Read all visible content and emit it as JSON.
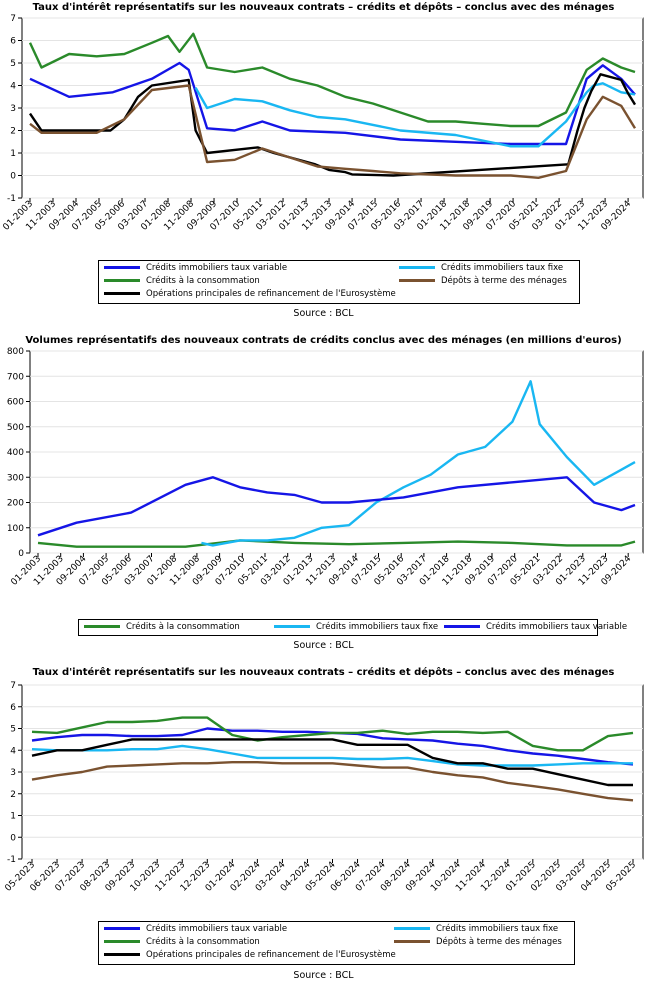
{
  "charts": [
    {
      "title": "Taux d'intérêt représentatifs sur les nouveaux contrats – crédits et dépôts – conclus avec des ménages",
      "source": "Source : BCL"
    },
    {
      "title": "Volumes représentatifs des nouveaux contrats de crédits conclus avec des ménages (en millions d'euros)",
      "source": "Source : BCL"
    },
    {
      "title": "Taux d'intérêt représentatifs sur les nouveaux contrats – crédits et dépôts – conclus avec des ménages",
      "source": "Source : BCL"
    }
  ],
  "chart_data": [
    {
      "type": "line",
      "title": "Taux d'intérêt représentatifs sur les nouveaux contrats – crédits et dépôts – conclus avec des ménages",
      "x_start": "01-2003",
      "x_end": "12-2024",
      "x_ticks": [
        "01-2003",
        "11-2003",
        "09-2004",
        "07-2005",
        "05-2006",
        "03-2007",
        "01-2008",
        "11-2008",
        "09-2009",
        "07-2010",
        "05-2011",
        "03-2012",
        "01-2013",
        "11-2013",
        "09-2014",
        "07-2015",
        "05-2016",
        "03-2017",
        "01-2018",
        "11-2018",
        "09-2019",
        "07-2020",
        "05-2021",
        "03-2022",
        "01-2023",
        "11-2023",
        "09-2024"
      ],
      "ylim": [
        -1,
        7
      ],
      "y_ticks": [
        -1,
        0,
        1,
        2,
        3,
        4,
        5,
        6,
        7
      ],
      "grid": true,
      "legend_position": "bottom",
      "series": [
        {
          "name": "Crédits immobiliers taux variable",
          "color": "#1515E6",
          "x": [
            "01-2003",
            "06-2004",
            "01-2006",
            "06-2007",
            "06-2008",
            "10-2008",
            "06-2009",
            "06-2010",
            "06-2011",
            "06-2012",
            "06-2014",
            "06-2016",
            "06-2018",
            "06-2020",
            "06-2022",
            "03-2023",
            "10-2023",
            "06-2024",
            "12-2024"
          ],
          "values": [
            4.3,
            3.5,
            3.7,
            4.3,
            5.0,
            4.7,
            2.1,
            2.0,
            2.4,
            2.0,
            1.9,
            1.6,
            1.5,
            1.4,
            1.4,
            4.3,
            4.9,
            4.3,
            3.6
          ]
        },
        {
          "name": "Crédits immobiliers taux fixe",
          "color": "#19B7F2",
          "x": [
            "01-2009",
            "06-2009",
            "06-2010",
            "06-2011",
            "06-2012",
            "06-2013",
            "06-2014",
            "06-2016",
            "06-2018",
            "06-2020",
            "06-2021",
            "06-2022",
            "03-2023",
            "06-2023",
            "10-2023",
            "06-2024",
            "12-2024"
          ],
          "values": [
            3.9,
            3.0,
            3.4,
            3.3,
            2.9,
            2.6,
            2.5,
            2.0,
            1.8,
            1.3,
            1.3,
            2.4,
            3.7,
            4.0,
            4.1,
            3.7,
            3.6
          ]
        },
        {
          "name": "Crédits à la consommation",
          "color": "#2A8A2A",
          "x": [
            "01-2003",
            "06-2003",
            "06-2004",
            "06-2005",
            "06-2006",
            "06-2007",
            "01-2008",
            "06-2008",
            "12-2008",
            "06-2009",
            "06-2010",
            "06-2011",
            "06-2012",
            "06-2013",
            "06-2014",
            "06-2015",
            "06-2016",
            "06-2017",
            "06-2018",
            "06-2019",
            "06-2020",
            "06-2021",
            "06-2022",
            "03-2023",
            "10-2023",
            "06-2024",
            "12-2024"
          ],
          "values": [
            5.9,
            4.8,
            5.4,
            5.3,
            5.4,
            5.9,
            6.2,
            5.5,
            6.3,
            4.8,
            4.6,
            4.8,
            4.3,
            4.0,
            3.5,
            3.2,
            2.8,
            2.4,
            2.4,
            2.3,
            2.2,
            2.2,
            2.8,
            4.7,
            5.2,
            4.8,
            4.6
          ]
        },
        {
          "name": "Opérations principales de refinancement de l'Eurosystème",
          "color": "#000000",
          "x": [
            "01-2003",
            "06-2003",
            "12-2005",
            "06-2006",
            "12-2006",
            "06-2007",
            "10-2008",
            "01-2009",
            "06-2009",
            "04-2011",
            "11-2011",
            "05-2013",
            "11-2013",
            "06-2014",
            "09-2014",
            "03-2016",
            "07-2022",
            "09-2022",
            "11-2022",
            "02-2023",
            "05-2023",
            "09-2023",
            "06-2024",
            "09-2024",
            "12-2024"
          ],
          "values": [
            2.75,
            2.0,
            2.0,
            2.5,
            3.5,
            4.0,
            4.25,
            2.0,
            1.0,
            1.25,
            1.0,
            0.5,
            0.25,
            0.15,
            0.05,
            0.0,
            0.5,
            1.25,
            2.0,
            3.0,
            3.75,
            4.5,
            4.25,
            3.65,
            3.15
          ]
        },
        {
          "name": "Dépôts à terme des ménages",
          "color": "#7A5230",
          "x": [
            "01-2003",
            "06-2003",
            "06-2005",
            "06-2006",
            "06-2007",
            "10-2008",
            "06-2009",
            "06-2010",
            "06-2011",
            "06-2012",
            "06-2013",
            "06-2014",
            "06-2015",
            "06-2016",
            "06-2018",
            "06-2020",
            "06-2021",
            "06-2022",
            "03-2023",
            "10-2023",
            "06-2024",
            "12-2024"
          ],
          "values": [
            2.3,
            1.9,
            1.9,
            2.5,
            3.8,
            4.0,
            0.6,
            0.7,
            1.2,
            0.8,
            0.4,
            0.3,
            0.2,
            0.1,
            0.0,
            0.0,
            -0.1,
            0.2,
            2.5,
            3.5,
            3.1,
            2.1
          ]
        }
      ]
    },
    {
      "type": "line",
      "title": "Volumes représentatifs des nouveaux contrats de crédits conclus avec des ménages (en millions d'euros)",
      "x_start": "01-2003",
      "x_end": "12-2024",
      "x_ticks": [
        "01-2003",
        "11-2003",
        "09-2004",
        "07-2005",
        "05-2006",
        "03-2007",
        "01-2008",
        "11-2008",
        "09-2009",
        "07-2010",
        "05-2011",
        "03-2012",
        "01-2013",
        "11-2013",
        "09-2014",
        "07-2015",
        "05-2016",
        "03-2017",
        "01-2018",
        "11-2018",
        "09-2019",
        "07-2020",
        "05-2021",
        "03-2022",
        "01-2023",
        "11-2023",
        "09-2024"
      ],
      "ylim": [
        0,
        800
      ],
      "y_ticks": [
        0,
        100,
        200,
        300,
        400,
        500,
        600,
        700,
        800
      ],
      "grid": true,
      "legend_position": "bottom",
      "series": [
        {
          "name": "Crédits à la consommation",
          "color": "#2A8A2A",
          "x": [
            "01-2003",
            "06-2004",
            "06-2006",
            "06-2008",
            "06-2010",
            "06-2012",
            "06-2014",
            "06-2016",
            "06-2018",
            "06-2020",
            "06-2022",
            "06-2024",
            "12-2024"
          ],
          "values": [
            40,
            25,
            25,
            25,
            50,
            40,
            35,
            40,
            45,
            40,
            30,
            30,
            45
          ]
        },
        {
          "name": "Crédits immobiliers taux fixe",
          "color": "#19B7F2",
          "x": [
            "01-2009",
            "06-2009",
            "06-2010",
            "06-2011",
            "06-2012",
            "06-2013",
            "06-2014",
            "06-2015",
            "06-2016",
            "06-2017",
            "06-2018",
            "06-2019",
            "06-2020",
            "02-2021",
            "06-2021",
            "06-2022",
            "06-2023",
            "06-2024",
            "12-2024"
          ],
          "values": [
            40,
            30,
            50,
            50,
            60,
            100,
            110,
            200,
            260,
            310,
            390,
            420,
            520,
            680,
            510,
            380,
            270,
            330,
            360
          ]
        },
        {
          "name": "Crédits immobiliers taux variable",
          "color": "#1515E6",
          "x": [
            "01-2003",
            "06-2004",
            "06-2006",
            "06-2008",
            "06-2009",
            "06-2010",
            "06-2011",
            "06-2012",
            "06-2013",
            "06-2014",
            "06-2016",
            "06-2018",
            "06-2020",
            "06-2021",
            "06-2022",
            "06-2023",
            "06-2024",
            "12-2024"
          ],
          "values": [
            70,
            120,
            160,
            270,
            300,
            260,
            240,
            230,
            200,
            200,
            220,
            260,
            280,
            290,
            300,
            200,
            170,
            190
          ]
        }
      ]
    },
    {
      "type": "line",
      "title": "Taux d'intérêt représentatifs sur les nouveaux contrats – crédits et dépôts – conclus avec des ménages",
      "categories": [
        "05-2023",
        "06-2023",
        "07-2023",
        "08-2023",
        "09-2023",
        "10-2023",
        "11-2023",
        "12-2023",
        "01-2024",
        "02-2024",
        "03-2024",
        "04-2024",
        "05-2024",
        "06-2024",
        "07-2024",
        "08-2024",
        "09-2024",
        "10-2024",
        "11-2024",
        "12-2024",
        "01-2025",
        "02-2025",
        "03-2025",
        "04-2025",
        "05-2025"
      ],
      "ylim": [
        -1,
        7
      ],
      "y_ticks": [
        -1,
        0,
        1,
        2,
        3,
        4,
        5,
        6,
        7
      ],
      "grid": true,
      "legend_position": "bottom",
      "series": [
        {
          "name": "Crédits immobiliers taux variable",
          "color": "#1515E6",
          "values": [
            4.45,
            4.6,
            4.7,
            4.7,
            4.65,
            4.65,
            4.7,
            5.0,
            4.9,
            4.9,
            4.85,
            4.85,
            4.8,
            4.75,
            4.55,
            4.5,
            4.45,
            4.3,
            4.2,
            4.0,
            3.85,
            3.75,
            3.6,
            3.45,
            3.35
          ]
        },
        {
          "name": "Crédits immobiliers taux fixe",
          "color": "#19B7F2",
          "values": [
            4.05,
            4.0,
            4.0,
            4.0,
            4.05,
            4.05,
            4.2,
            4.05,
            3.85,
            3.65,
            3.65,
            3.65,
            3.65,
            3.6,
            3.6,
            3.65,
            3.5,
            3.35,
            3.3,
            3.3,
            3.3,
            3.35,
            3.4,
            3.4,
            3.4
          ]
        },
        {
          "name": "Crédits à la consommation",
          "color": "#2A8A2A",
          "values": [
            4.85,
            4.8,
            5.05,
            5.3,
            5.3,
            5.35,
            5.5,
            5.5,
            4.7,
            4.45,
            4.6,
            4.7,
            4.8,
            4.8,
            4.9,
            4.75,
            4.85,
            4.85,
            4.8,
            4.85,
            4.2,
            4.0,
            4.0,
            4.65,
            4.8
          ]
        },
        {
          "name": "Opérations principales de refinancement de l'Eurosystème",
          "color": "#000000",
          "values": [
            3.75,
            4.0,
            4.0,
            4.25,
            4.5,
            4.5,
            4.5,
            4.5,
            4.5,
            4.5,
            4.5,
            4.5,
            4.5,
            4.25,
            4.25,
            4.25,
            3.65,
            3.4,
            3.4,
            3.15,
            3.15,
            2.9,
            2.65,
            2.4,
            2.4
          ]
        },
        {
          "name": "Dépôts à terme des ménages",
          "color": "#7A5230",
          "values": [
            2.65,
            2.85,
            3.0,
            3.25,
            3.3,
            3.35,
            3.4,
            3.4,
            3.45,
            3.45,
            3.4,
            3.4,
            3.4,
            3.3,
            3.2,
            3.2,
            3.0,
            2.85,
            2.75,
            2.5,
            2.35,
            2.2,
            2.0,
            1.8,
            1.7
          ]
        }
      ]
    }
  ],
  "legends": [
    {
      "items": [
        {
          "label": "Crédits immobiliers taux variable",
          "color": "#1515E6"
        },
        {
          "label": "Crédits immobiliers taux fixe",
          "color": "#19B7F2"
        },
        {
          "label": "Crédits à la consommation",
          "color": "#2A8A2A"
        },
        {
          "label": "Dépôts à terme des ménages",
          "color": "#7A5230"
        },
        {
          "label": "Opérations principales de refinancement de l'Eurosystème",
          "color": "#000000"
        }
      ]
    },
    {
      "items": [
        {
          "label": "Crédits à la consommation",
          "color": "#2A8A2A"
        },
        {
          "label": "Crédits immobiliers taux fixe",
          "color": "#19B7F2"
        },
        {
          "label": "Crédits immobiliers taux variable",
          "color": "#1515E6"
        }
      ]
    },
    {
      "items": [
        {
          "label": "Crédits immobiliers taux variable",
          "color": "#1515E6"
        },
        {
          "label": "Crédits immobiliers taux fixe",
          "color": "#19B7F2"
        },
        {
          "label": "Crédits à la consommation",
          "color": "#2A8A2A"
        },
        {
          "label": "Dépôts à terme des ménages",
          "color": "#7A5230"
        },
        {
          "label": "Opérations principales de refinancement de l'Eurosystème",
          "color": "#000000"
        }
      ]
    }
  ]
}
